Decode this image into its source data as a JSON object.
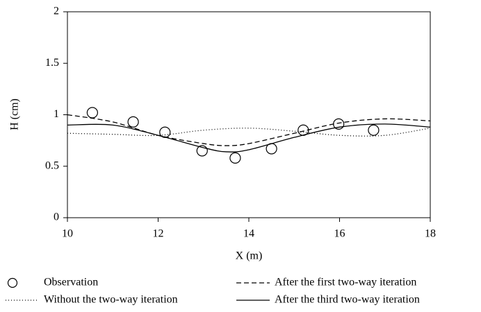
{
  "chart_data": {
    "type": "line",
    "xlabel": "X (m)",
    "ylabel": "H (cm)",
    "xlim": [
      10,
      18
    ],
    "ylim": [
      0,
      2
    ],
    "xticks": [
      10,
      12,
      14,
      16,
      18
    ],
    "yticks": [
      0,
      0.5,
      1,
      1.5,
      2
    ],
    "grid": false,
    "legend": "bottom",
    "series": [
      {
        "name": "Observation",
        "type": "scatter",
        "color": "#000000",
        "x": [
          10.55,
          11.45,
          12.15,
          12.97,
          13.7,
          14.5,
          15.2,
          15.98,
          16.75
        ],
        "values": [
          1.02,
          0.93,
          0.83,
          0.65,
          0.58,
          0.67,
          0.85,
          0.91,
          0.85
        ]
      },
      {
        "name": "After the first two-way iteration",
        "type": "line",
        "style": "dashed",
        "color": "#000000",
        "x": [
          10,
          11,
          12,
          13,
          13.5,
          14,
          15,
          16,
          17,
          18
        ],
        "values": [
          1.0,
          0.93,
          0.8,
          0.72,
          0.7,
          0.72,
          0.82,
          0.92,
          0.96,
          0.94
        ]
      },
      {
        "name": "Without the two-way iteration",
        "type": "line",
        "style": "dotted",
        "color": "#000000",
        "x": [
          10,
          11,
          12,
          13,
          14,
          15,
          16,
          17,
          18
        ],
        "values": [
          0.82,
          0.81,
          0.8,
          0.85,
          0.87,
          0.84,
          0.8,
          0.8,
          0.87
        ]
      },
      {
        "name": "After the third two-way iteration",
        "type": "line",
        "style": "solid",
        "color": "#000000",
        "x": [
          10,
          11,
          12,
          13,
          13.5,
          14,
          15,
          16,
          17,
          18
        ],
        "values": [
          0.9,
          0.9,
          0.8,
          0.68,
          0.64,
          0.66,
          0.78,
          0.88,
          0.91,
          0.88
        ]
      }
    ]
  }
}
